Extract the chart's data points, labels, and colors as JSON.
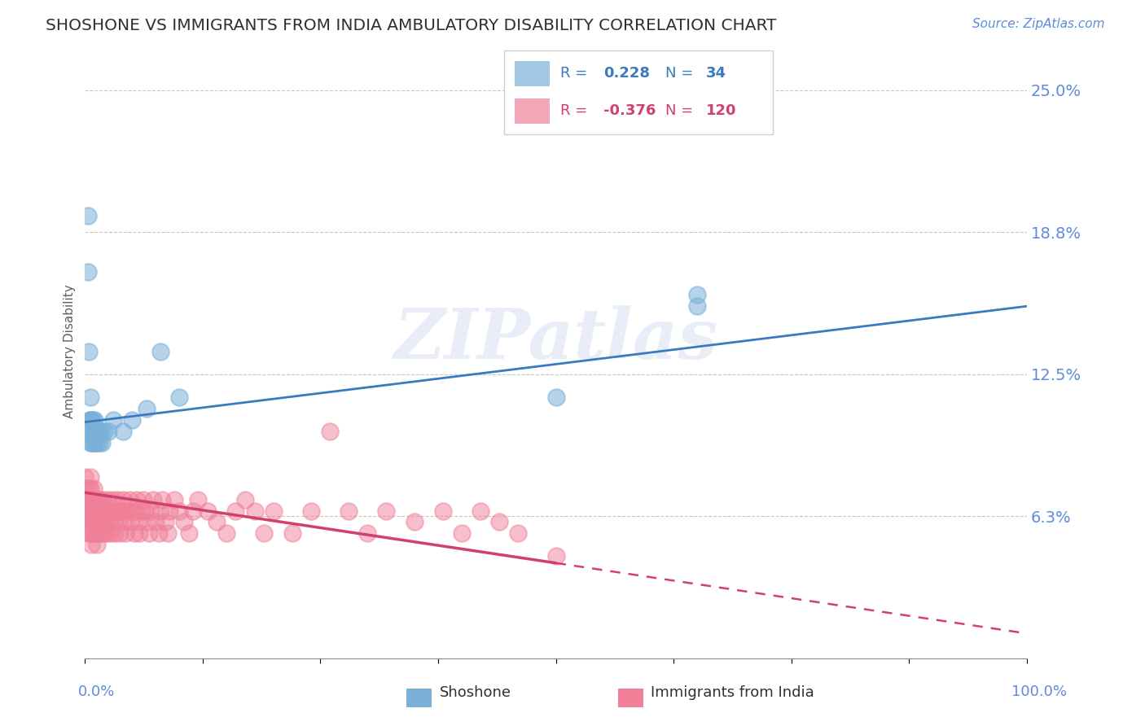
{
  "title": "SHOSHONE VS IMMIGRANTS FROM INDIA AMBULATORY DISABILITY CORRELATION CHART",
  "source": "Source: ZipAtlas.com",
  "ylabel": "Ambulatory Disability",
  "xlim": [
    0.0,
    1.0
  ],
  "ylim": [
    0.0,
    0.27
  ],
  "shoshone_color": "#7ab0d8",
  "india_color": "#f08098",
  "shoshone_line_color": "#3a7abf",
  "india_line_color": "#d04070",
  "axis_label_color": "#5b8dd9",
  "background_color": "#ffffff",
  "watermark": "ZIPatlas",
  "shoshone_R": 0.228,
  "shoshone_N": 34,
  "india_R": -0.376,
  "india_N": 120,
  "shoshone_scatter": [
    [
      0.003,
      0.195
    ],
    [
      0.003,
      0.17
    ],
    [
      0.004,
      0.135
    ],
    [
      0.005,
      0.105
    ],
    [
      0.005,
      0.1
    ],
    [
      0.006,
      0.115
    ],
    [
      0.006,
      0.105
    ],
    [
      0.006,
      0.095
    ],
    [
      0.007,
      0.105
    ],
    [
      0.007,
      0.095
    ],
    [
      0.008,
      0.105
    ],
    [
      0.008,
      0.1
    ],
    [
      0.009,
      0.095
    ],
    [
      0.009,
      0.1
    ],
    [
      0.01,
      0.105
    ],
    [
      0.01,
      0.095
    ],
    [
      0.011,
      0.1
    ],
    [
      0.012,
      0.1
    ],
    [
      0.013,
      0.095
    ],
    [
      0.014,
      0.1
    ],
    [
      0.015,
      0.095
    ],
    [
      0.017,
      0.1
    ],
    [
      0.018,
      0.095
    ],
    [
      0.02,
      0.1
    ],
    [
      0.025,
      0.1
    ],
    [
      0.03,
      0.105
    ],
    [
      0.04,
      0.1
    ],
    [
      0.05,
      0.105
    ],
    [
      0.065,
      0.11
    ],
    [
      0.08,
      0.135
    ],
    [
      0.1,
      0.115
    ],
    [
      0.5,
      0.115
    ],
    [
      0.65,
      0.155
    ],
    [
      0.65,
      0.16
    ]
  ],
  "india_scatter": [
    [
      0.0,
      0.075
    ],
    [
      0.0,
      0.08
    ],
    [
      0.0,
      0.065
    ],
    [
      0.001,
      0.07
    ],
    [
      0.002,
      0.065
    ],
    [
      0.002,
      0.06
    ],
    [
      0.003,
      0.055
    ],
    [
      0.003,
      0.07
    ],
    [
      0.004,
      0.075
    ],
    [
      0.004,
      0.065
    ],
    [
      0.004,
      0.06
    ],
    [
      0.005,
      0.055
    ],
    [
      0.005,
      0.07
    ],
    [
      0.005,
      0.065
    ],
    [
      0.006,
      0.075
    ],
    [
      0.006,
      0.08
    ],
    [
      0.006,
      0.065
    ],
    [
      0.006,
      0.06
    ],
    [
      0.007,
      0.07
    ],
    [
      0.007,
      0.055
    ],
    [
      0.007,
      0.05
    ],
    [
      0.008,
      0.065
    ],
    [
      0.008,
      0.07
    ],
    [
      0.008,
      0.06
    ],
    [
      0.009,
      0.055
    ],
    [
      0.009,
      0.075
    ],
    [
      0.009,
      0.07
    ],
    [
      0.01,
      0.065
    ],
    [
      0.01,
      0.06
    ],
    [
      0.011,
      0.055
    ],
    [
      0.011,
      0.07
    ],
    [
      0.012,
      0.065
    ],
    [
      0.012,
      0.06
    ],
    [
      0.013,
      0.05
    ],
    [
      0.013,
      0.055
    ],
    [
      0.014,
      0.065
    ],
    [
      0.014,
      0.07
    ],
    [
      0.015,
      0.06
    ],
    [
      0.015,
      0.055
    ],
    [
      0.016,
      0.065
    ],
    [
      0.016,
      0.07
    ],
    [
      0.017,
      0.065
    ],
    [
      0.017,
      0.06
    ],
    [
      0.018,
      0.055
    ],
    [
      0.019,
      0.065
    ],
    [
      0.019,
      0.07
    ],
    [
      0.02,
      0.06
    ],
    [
      0.02,
      0.055
    ],
    [
      0.021,
      0.065
    ],
    [
      0.022,
      0.06
    ],
    [
      0.023,
      0.055
    ],
    [
      0.024,
      0.07
    ],
    [
      0.025,
      0.065
    ],
    [
      0.026,
      0.06
    ],
    [
      0.027,
      0.055
    ],
    [
      0.028,
      0.065
    ],
    [
      0.029,
      0.07
    ],
    [
      0.03,
      0.065
    ],
    [
      0.031,
      0.06
    ],
    [
      0.032,
      0.055
    ],
    [
      0.033,
      0.065
    ],
    [
      0.034,
      0.07
    ],
    [
      0.035,
      0.065
    ],
    [
      0.036,
      0.06
    ],
    [
      0.037,
      0.055
    ],
    [
      0.038,
      0.065
    ],
    [
      0.04,
      0.07
    ],
    [
      0.041,
      0.065
    ],
    [
      0.042,
      0.06
    ],
    [
      0.043,
      0.055
    ],
    [
      0.045,
      0.065
    ],
    [
      0.047,
      0.07
    ],
    [
      0.048,
      0.06
    ],
    [
      0.05,
      0.065
    ],
    [
      0.052,
      0.055
    ],
    [
      0.053,
      0.065
    ],
    [
      0.055,
      0.07
    ],
    [
      0.057,
      0.06
    ],
    [
      0.058,
      0.055
    ],
    [
      0.06,
      0.065
    ],
    [
      0.062,
      0.07
    ],
    [
      0.064,
      0.065
    ],
    [
      0.066,
      0.06
    ],
    [
      0.068,
      0.055
    ],
    [
      0.07,
      0.065
    ],
    [
      0.072,
      0.07
    ],
    [
      0.075,
      0.06
    ],
    [
      0.078,
      0.055
    ],
    [
      0.08,
      0.065
    ],
    [
      0.082,
      0.07
    ],
    [
      0.085,
      0.06
    ],
    [
      0.088,
      0.055
    ],
    [
      0.09,
      0.065
    ],
    [
      0.095,
      0.07
    ],
    [
      0.1,
      0.065
    ],
    [
      0.105,
      0.06
    ],
    [
      0.11,
      0.055
    ],
    [
      0.115,
      0.065
    ],
    [
      0.12,
      0.07
    ],
    [
      0.13,
      0.065
    ],
    [
      0.14,
      0.06
    ],
    [
      0.15,
      0.055
    ],
    [
      0.16,
      0.065
    ],
    [
      0.17,
      0.07
    ],
    [
      0.18,
      0.065
    ],
    [
      0.19,
      0.055
    ],
    [
      0.2,
      0.065
    ],
    [
      0.22,
      0.055
    ],
    [
      0.24,
      0.065
    ],
    [
      0.26,
      0.1
    ],
    [
      0.28,
      0.065
    ],
    [
      0.3,
      0.055
    ],
    [
      0.32,
      0.065
    ],
    [
      0.35,
      0.06
    ],
    [
      0.38,
      0.065
    ],
    [
      0.4,
      0.055
    ],
    [
      0.42,
      0.065
    ],
    [
      0.44,
      0.06
    ],
    [
      0.46,
      0.055
    ],
    [
      0.5,
      0.045
    ]
  ],
  "shoshone_line_x0": 0.0,
  "shoshone_line_y0": 0.104,
  "shoshone_line_x1": 1.0,
  "shoshone_line_y1": 0.155,
  "india_line_x0": 0.0,
  "india_line_y0": 0.073,
  "india_line_x1": 0.5,
  "india_line_y1": 0.042,
  "india_line_dash_x0": 0.5,
  "india_line_dash_y0": 0.042,
  "india_line_dash_x1": 1.0,
  "india_line_dash_y1": 0.011
}
